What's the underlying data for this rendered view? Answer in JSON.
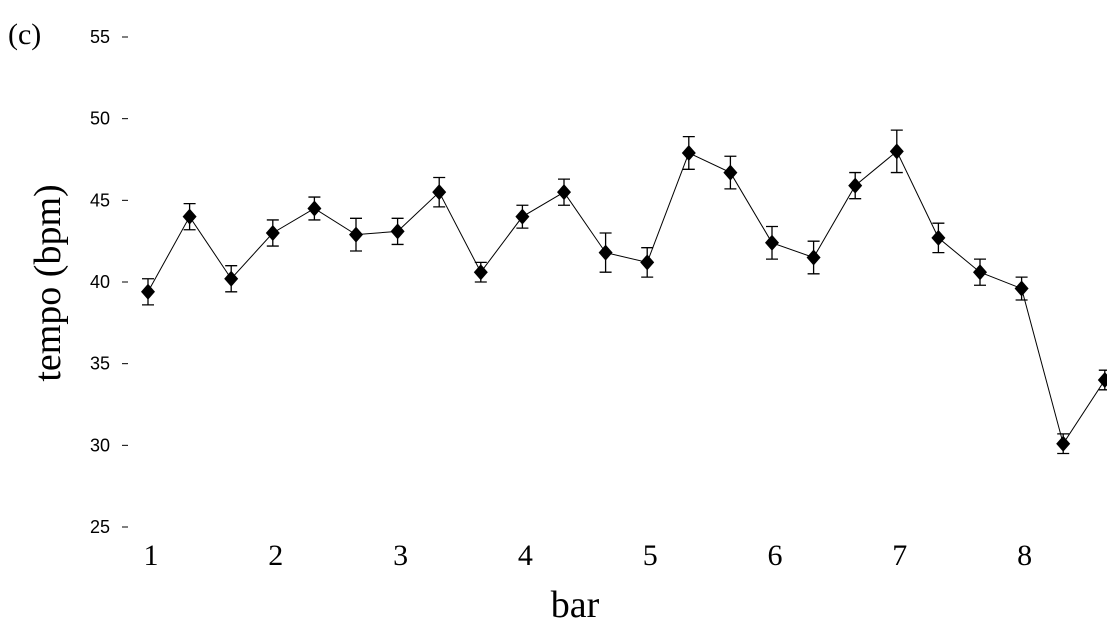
{
  "chart_data": {
    "type": "line",
    "panel_label": "(c)",
    "xlabel": "bar",
    "ylabel": "tempo (bpm)",
    "categories": [
      "1",
      null,
      null,
      "2",
      null,
      null,
      "3",
      null,
      null,
      "4",
      null,
      null,
      "5",
      null,
      null,
      "6",
      null,
      null,
      "7",
      null,
      null,
      "8",
      null,
      null
    ],
    "values": [
      39.4,
      44.0,
      40.2,
      43.0,
      44.5,
      42.9,
      43.1,
      45.5,
      40.6,
      44.0,
      45.5,
      41.8,
      41.2,
      47.9,
      46.7,
      42.4,
      41.5,
      45.9,
      48.0,
      42.7,
      40.6,
      39.6,
      30.1,
      34.0
    ],
    "errors": [
      0.8,
      0.8,
      0.8,
      0.8,
      0.7,
      1.0,
      0.8,
      0.9,
      0.6,
      0.7,
      0.8,
      1.2,
      0.9,
      1.0,
      1.0,
      1.0,
      1.0,
      0.8,
      1.3,
      0.9,
      0.8,
      0.7,
      0.6,
      0.6
    ],
    "color": "#000000",
    "ylim": [
      25,
      55
    ],
    "yticks": [
      25,
      30,
      35,
      40,
      45,
      50,
      55
    ]
  }
}
